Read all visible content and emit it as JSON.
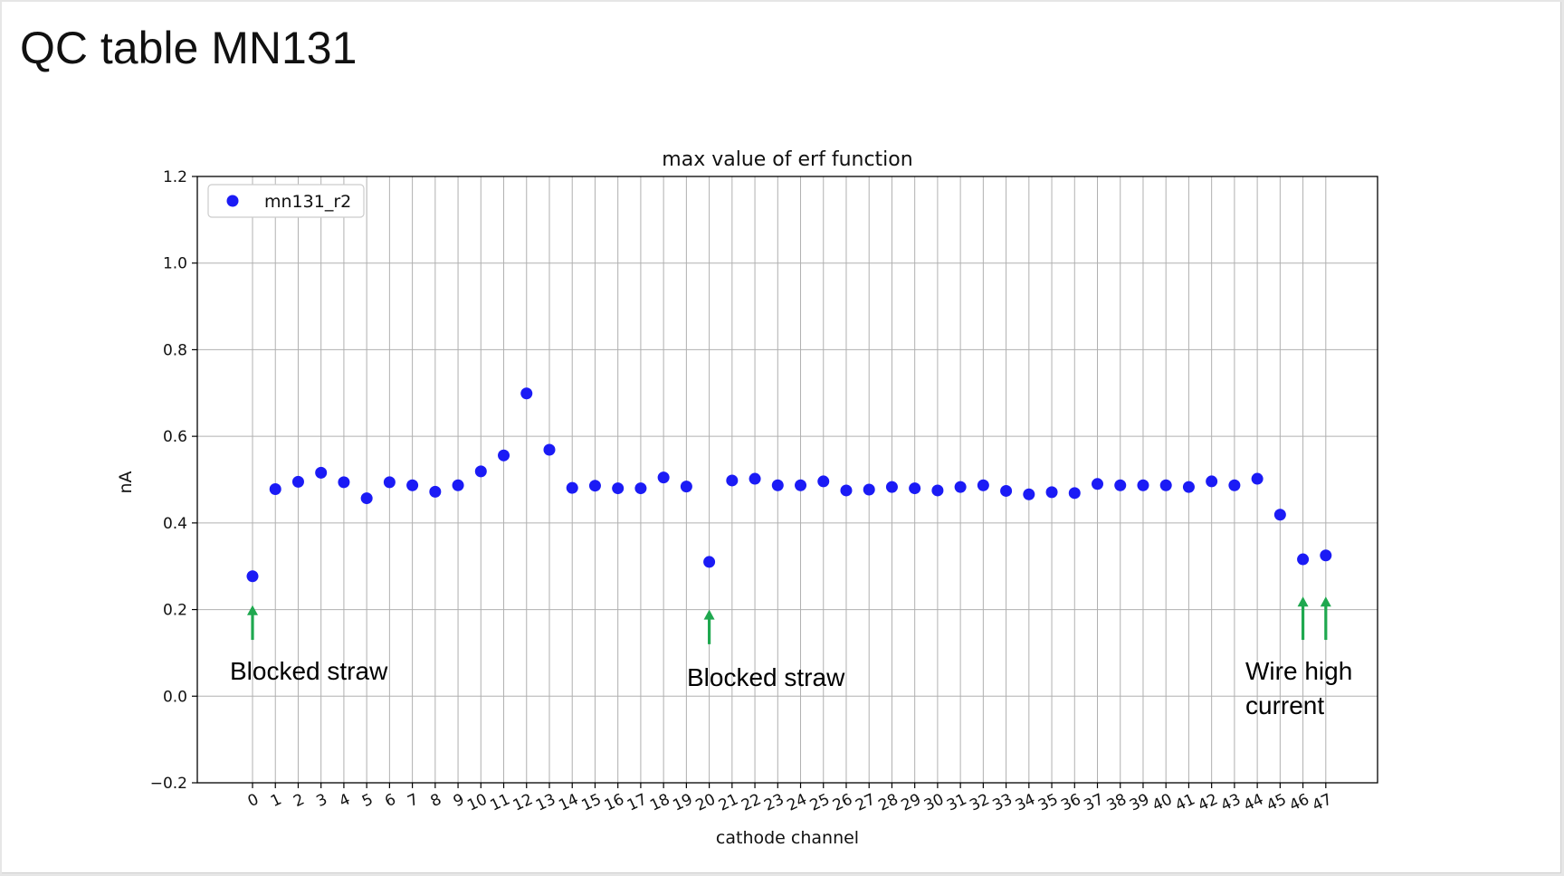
{
  "slide": {
    "title": "QC table MN131"
  },
  "chart_data": {
    "type": "scatter",
    "title": "max value of erf function",
    "xlabel": "cathode channel",
    "ylabel": "nA",
    "ylim": [
      -0.2,
      1.2
    ],
    "yticks": [
      "−0.2",
      "0.0",
      "0.2",
      "0.4",
      "0.6",
      "0.8",
      "1.0",
      "1.2"
    ],
    "ytick_values": [
      -0.2,
      0.0,
      0.2,
      0.4,
      0.6,
      0.8,
      1.0,
      1.2
    ],
    "x": [
      0,
      1,
      2,
      3,
      4,
      5,
      6,
      7,
      8,
      9,
      10,
      11,
      12,
      13,
      14,
      15,
      16,
      17,
      18,
      19,
      20,
      21,
      22,
      23,
      24,
      25,
      26,
      27,
      28,
      29,
      30,
      31,
      32,
      33,
      34,
      35,
      36,
      37,
      38,
      39,
      40,
      41,
      42,
      43,
      44,
      45,
      46,
      47
    ],
    "xticks": [
      "0",
      "1",
      "2",
      "3",
      "4",
      "5",
      "6",
      "7",
      "8",
      "9",
      "10",
      "11",
      "12",
      "13",
      "14",
      "15",
      "16",
      "17",
      "18",
      "19",
      "20",
      "21",
      "22",
      "23",
      "24",
      "25",
      "26",
      "27",
      "28",
      "29",
      "30",
      "31",
      "32",
      "33",
      "34",
      "35",
      "36",
      "37",
      "38",
      "39",
      "40",
      "41",
      "42",
      "43",
      "44",
      "45",
      "46",
      "47"
    ],
    "grid": true,
    "legend_position": "top-left",
    "series": [
      {
        "name": "mn131_r2",
        "color": "#1b1bf5",
        "values": [
          0.277,
          0.478,
          0.495,
          0.516,
          0.494,
          0.457,
          0.494,
          0.487,
          0.472,
          0.487,
          0.519,
          0.556,
          0.699,
          0.569,
          0.481,
          0.486,
          0.48,
          0.48,
          0.505,
          0.484,
          0.31,
          0.498,
          0.502,
          0.487,
          0.487,
          0.496,
          0.475,
          0.477,
          0.483,
          0.48,
          0.475,
          0.483,
          0.487,
          0.474,
          0.466,
          0.471,
          0.469,
          0.49,
          0.487,
          0.487,
          0.487,
          0.483,
          0.496,
          0.487,
          0.502,
          0.419,
          0.316,
          0.325
        ]
      }
    ],
    "annotations": [
      {
        "text": [
          "Blocked straw"
        ],
        "channel": 0,
        "arrow_from": 0.13,
        "arrow_to": 0.21
      },
      {
        "text": [
          "Blocked straw"
        ],
        "channel": 20,
        "arrow_from": 0.12,
        "arrow_to": 0.2
      },
      {
        "text": [
          "Wire high",
          "current"
        ],
        "channel": 46,
        "arrow_from": 0.13,
        "arrow_to": 0.23
      },
      {
        "text": [],
        "channel": 47,
        "arrow_from": 0.13,
        "arrow_to": 0.23
      }
    ],
    "annotation_color": "#1fa84f"
  }
}
